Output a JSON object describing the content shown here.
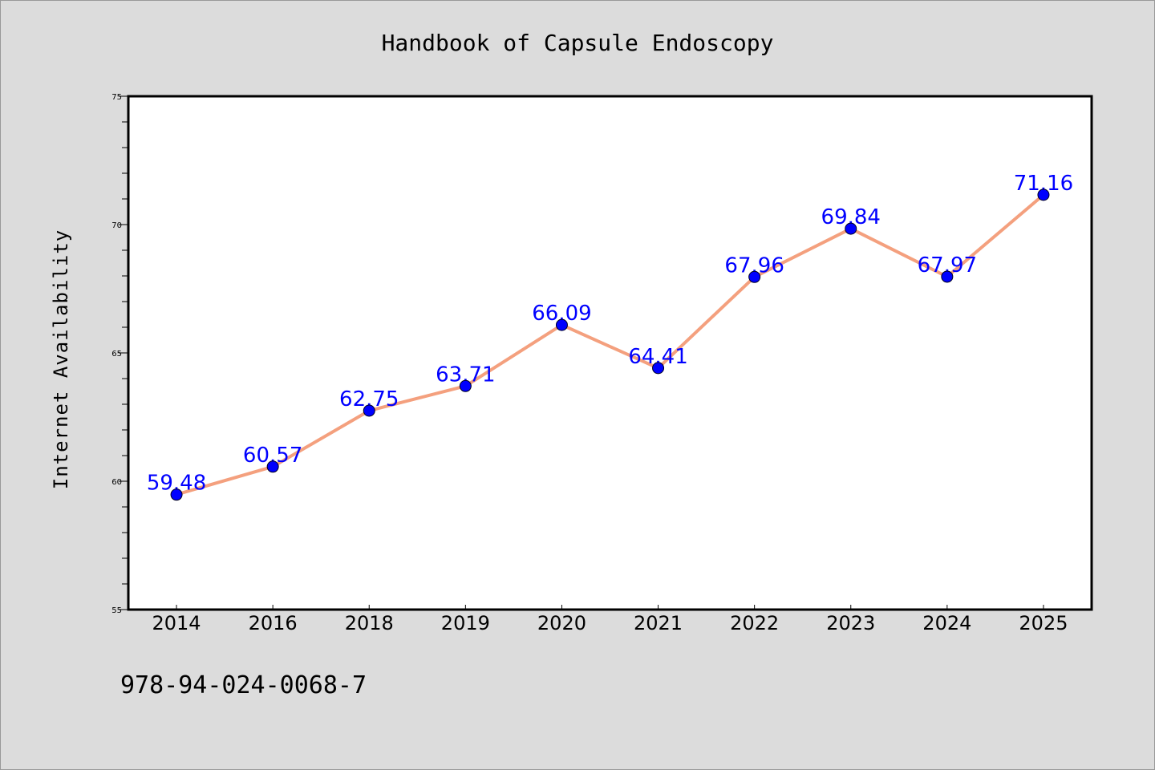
{
  "chart_data": {
    "type": "line",
    "title": "Handbook of Capsule Endoscopy",
    "xlabel": "",
    "ylabel": "Internet Availability",
    "categories": [
      "2014",
      "2016",
      "2018",
      "2019",
      "2020",
      "2021",
      "2022",
      "2023",
      "2024",
      "2025"
    ],
    "series": [
      {
        "values": [
          59.48,
          60.57,
          62.75,
          63.71,
          66.09,
          64.41,
          67.96,
          69.84,
          67.97,
          71.16
        ],
        "data_labels": [
          "59.48",
          "60.57",
          "62.75",
          "63.71",
          "66.09",
          "64.41",
          "67.96",
          "69.84",
          "67.97",
          "71.16"
        ]
      }
    ],
    "ylim": [
      55,
      75
    ],
    "yticks": [
      55,
      60,
      65,
      70,
      75
    ],
    "ytick_labels": [
      "55",
      "60",
      "65",
      "70",
      "75"
    ],
    "grid": false,
    "legend": "none",
    "colors": {
      "background": "#dcdcdc",
      "plot_background": "#ffffff",
      "line": "#f4a07e",
      "marker": "#0000ff",
      "data_label": "#0000ff"
    }
  },
  "footer_text": "978-94-024-0068-7"
}
